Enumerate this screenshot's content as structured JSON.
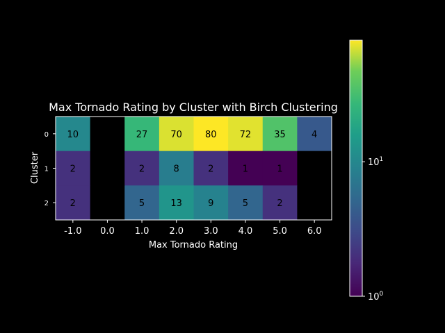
{
  "chart_data": {
    "type": "heatmap",
    "title": "Max Tornado Rating by Cluster with Birch Clustering",
    "xlabel": "Max Tornado Rating",
    "ylabel": "Cluster",
    "x_categories": [
      "-1.0",
      "0.0",
      "1.0",
      "2.0",
      "3.0",
      "4.0",
      "5.0",
      "6.0"
    ],
    "y_categories": [
      "0",
      "1",
      "2"
    ],
    "values": [
      [
        10,
        null,
        27,
        70,
        80,
        72,
        35,
        4
      ],
      [
        2,
        null,
        2,
        8,
        2,
        1,
        1,
        null
      ],
      [
        2,
        null,
        5,
        13,
        9,
        5,
        2,
        null
      ]
    ],
    "color_scale": "log",
    "colormap": "viridis",
    "colorbar": {
      "range": [
        1,
        80
      ],
      "ticks": [
        {
          "value": 1,
          "base": "10",
          "exp": "0"
        },
        {
          "value": 10,
          "base": "10",
          "exp": "1"
        }
      ]
    },
    "colors": {
      "background": "#000000",
      "text": "#ffffff",
      "cell_text": "#000000",
      "missing": "#000000"
    }
  }
}
